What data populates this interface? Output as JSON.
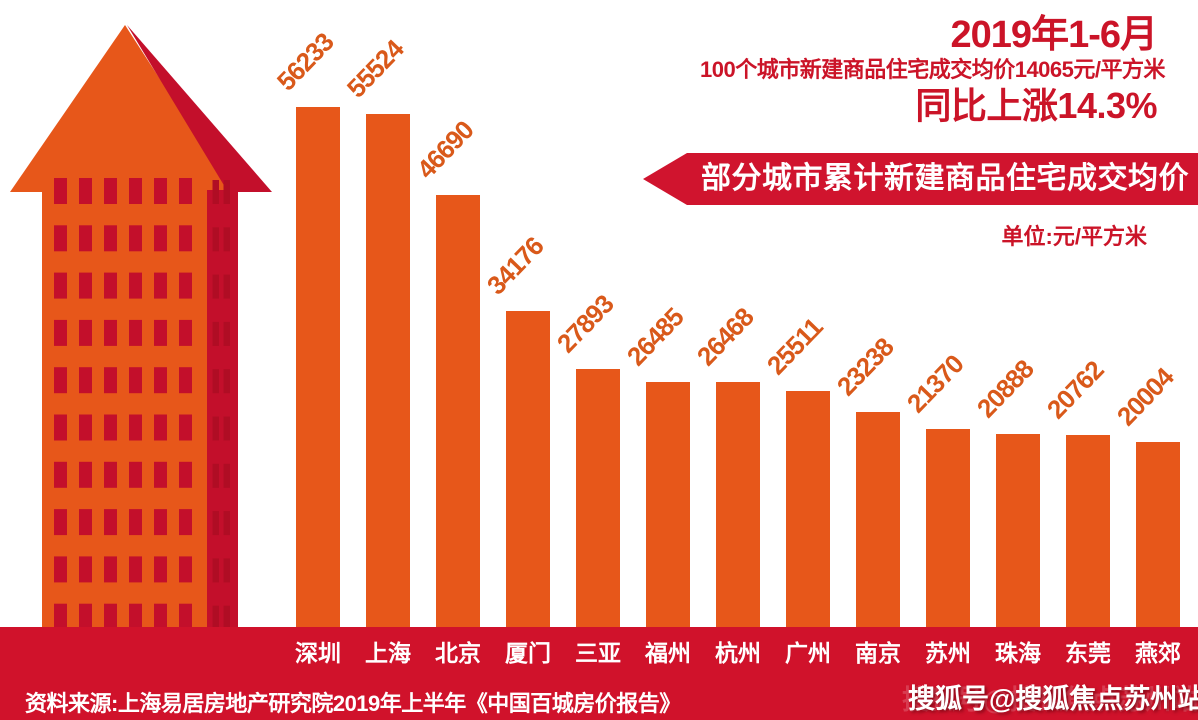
{
  "header": {
    "period": "2019年1-6月",
    "subtitle": "100个城市新建商品住宅成交均价14065元/平方米",
    "yoy_growth": "同比上涨14.3%"
  },
  "chart_data": {
    "type": "bar",
    "title": "部分城市累计新建商品住宅成交均价",
    "unit_label": "单位:元/平方米",
    "unit": "元/平方米",
    "categories": [
      "深圳",
      "上海",
      "北京",
      "厦门",
      "三亚",
      "福州",
      "杭州",
      "广州",
      "南京",
      "苏州",
      "珠海",
      "东莞",
      "燕郊"
    ],
    "values": [
      56233,
      55524,
      46690,
      34176,
      27893,
      26485,
      26468,
      25511,
      23238,
      21370,
      20888,
      20762,
      20004
    ],
    "ylim": [
      0,
      58000
    ],
    "grid": false,
    "legend": "none",
    "value_labels_rotated": true,
    "bar_color": "#e7571a",
    "value_label_color": "#d9591a",
    "category_label_color": "#ffffff"
  },
  "footer": {
    "source": "资料来源:上海易居房地产研究院2019年上半年《中国百城房价报告》",
    "watermark": "搜狐号@搜狐焦点苏州站"
  },
  "colors": {
    "background": "#ffffff",
    "orange": "#e7571a",
    "crimson": "#c30f2b",
    "crimson_dark": "#b00d24",
    "band_red": "#d0122b",
    "ribbon_red": "#d0142e",
    "text_red": "#cb1428"
  },
  "icons": {
    "building": "arrow-roof-building-illustration"
  }
}
